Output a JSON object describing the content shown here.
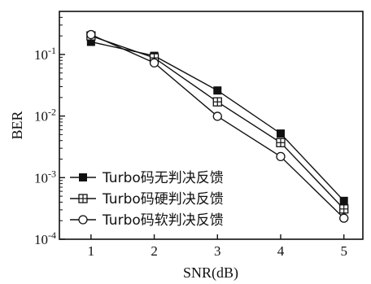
{
  "chart_data": {
    "type": "line",
    "xlabel": "SNR(dB)",
    "ylabel": "BER",
    "x": [
      1,
      2,
      3,
      4,
      5
    ],
    "xlim": [
      0.5,
      5.3
    ],
    "ylim": [
      0.0001,
      0.5
    ],
    "yscale": "log",
    "x_ticks": [
      "1",
      "2",
      "3",
      "4",
      "5"
    ],
    "y_ticks": [
      {
        "value": 0.1,
        "base": "10",
        "exp": "-1"
      },
      {
        "value": 0.01,
        "base": "10",
        "exp": "-2"
      },
      {
        "value": 0.001,
        "base": "10",
        "exp": "-3"
      },
      {
        "value": 0.0001,
        "base": "10",
        "exp": "-4"
      }
    ],
    "grid": false,
    "legend_position": "bottom-left",
    "series": [
      {
        "name": "Turbo码无判决反馈",
        "marker": "filled-square",
        "values": [
          0.16,
          0.095,
          0.026,
          0.0052,
          0.00042
        ]
      },
      {
        "name": "Turbo码硬判决反馈",
        "marker": "boxed-plus",
        "values": [
          0.2,
          0.088,
          0.017,
          0.0037,
          0.00031
        ]
      },
      {
        "name": "Turbo码软判决反馈",
        "marker": "open-circle",
        "values": [
          0.21,
          0.073,
          0.0099,
          0.0022,
          0.00022
        ]
      }
    ],
    "colors": {
      "line": "#111111",
      "background": "#ffffff"
    }
  }
}
